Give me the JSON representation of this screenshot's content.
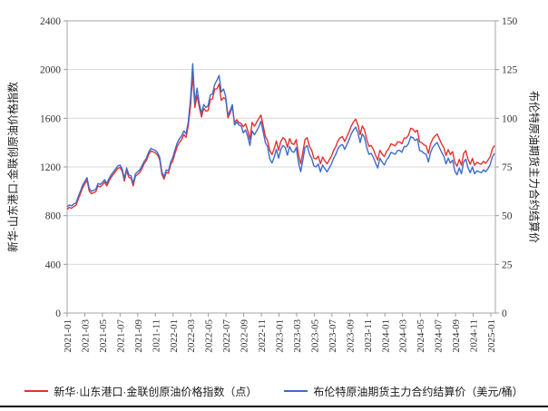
{
  "chart_data": {
    "type": "line",
    "title": "",
    "grid": "horizontal",
    "legend_position": "bottom",
    "x_sampling": "weekly samples, 2021-01 through late 2025-01",
    "x_tick_labels": [
      "2021-01",
      "2021-03",
      "2021-05",
      "2021-07",
      "2021-09",
      "2021-11",
      "2022-01",
      "2022-03",
      "2022-05",
      "2022-07",
      "2022-09",
      "2022-11",
      "2023-01",
      "2023-03",
      "2023-05",
      "2023-07",
      "2023-09",
      "2023-11",
      "2024-01",
      "2024-03",
      "2024-05",
      "2024-07",
      "2024-09",
      "2024-11",
      "2025-01"
    ],
    "left_axis": {
      "label": "新华·山东港口·金联创原油价格指数",
      "min": 0,
      "max": 2400,
      "ticks": [
        0,
        400,
        800,
        1200,
        1600,
        2000,
        2400
      ]
    },
    "right_axis": {
      "label": "布伦特原油期货主力合约结算价",
      "min": 0,
      "max": 150,
      "ticks": [
        0,
        25,
        50,
        75,
        100,
        125,
        150
      ]
    },
    "colors": {
      "grid": "#d9d9d9",
      "border": "#b3b3b3",
      "tick": "#9a9a9a",
      "text": "#333333"
    },
    "series": [
      {
        "name": "新华·山东港口·金联创原油价格指数（点）",
        "axis": "left",
        "color": "#e53030",
        "values": [
          852,
          868,
          860,
          876,
          884,
          932,
          980,
          1028,
          1060,
          1092,
          1004,
          980,
          988,
          996,
          1044,
          1036,
          1052,
          1076,
          1044,
          1084,
          1116,
          1140,
          1164,
          1188,
          1196,
          1164,
          1084,
          1172,
          1116,
          1108,
          1044,
          1124,
          1140,
          1156,
          1188,
          1228,
          1252,
          1300,
          1332,
          1324,
          1316,
          1300,
          1260,
          1140,
          1100,
          1156,
          1148,
          1220,
          1250,
          1314,
          1370,
          1402,
          1426,
          1466,
          1442,
          1538,
          1700,
          1958,
          1688,
          1788,
          1690,
          1610,
          1682,
          1658,
          1664,
          1752,
          1760,
          1840,
          1842,
          1882,
          1746,
          1770,
          1756,
          1604,
          1644,
          1692,
          1564,
          1588,
          1564,
          1556,
          1530,
          1554,
          1498,
          1426,
          1566,
          1534,
          1566,
          1598,
          1626,
          1538,
          1450,
          1418,
          1334,
          1302,
          1350,
          1414,
          1337,
          1409,
          1441,
          1425,
          1361,
          1433,
          1393,
          1385,
          1425,
          1305,
          1225,
          1321,
          1425,
          1441,
          1369,
          1337,
          1273,
          1265,
          1289,
          1225,
          1281,
          1249,
          1225,
          1257,
          1289,
          1337,
          1369,
          1417,
          1441,
          1449,
          1409,
          1449,
          1489,
          1537,
          1569,
          1593,
          1545,
          1465,
          1537,
          1505,
          1425,
          1369,
          1377,
          1345,
          1297,
          1257,
          1337,
          1305,
          1286,
          1326,
          1350,
          1390,
          1382,
          1374,
          1406,
          1406,
          1390,
          1438,
          1438,
          1462,
          1518,
          1510,
          1486,
          1502,
          1406,
          1398,
          1382,
          1374,
          1310,
          1390,
          1430,
          1454,
          1470,
          1430,
          1390,
          1358,
          1294,
          1342,
          1302,
          1326,
          1238,
          1206,
          1262,
          1214,
          1310,
          1334,
          1262,
          1222,
          1270,
          1214,
          1238,
          1230,
          1222,
          1246,
          1230,
          1254,
          1281,
          1345,
          1377
        ]
      },
      {
        "name": "布伦特原油期货主力合约结算价（美元/桶）",
        "axis": "right",
        "color": "#3e6bcb",
        "values": [
          54.5,
          55.5,
          55,
          56,
          56.5,
          59.5,
          62.5,
          65.5,
          67.5,
          69.5,
          64,
          62.5,
          63,
          63.5,
          66.5,
          66,
          67,
          68.5,
          66.5,
          69,
          71,
          72.5,
          74,
          75.5,
          76,
          74,
          69,
          74.5,
          71,
          70.5,
          66.5,
          71.5,
          72.5,
          73.5,
          75.5,
          78,
          79.5,
          82.5,
          84.5,
          84,
          83.5,
          82.5,
          80,
          72.5,
          70,
          73.5,
          73,
          77.5,
          80,
          84,
          87.5,
          89.5,
          91,
          93.5,
          92,
          98,
          110,
          128,
          108,
          115.5,
          107.5,
          102.5,
          107,
          105.5,
          106.5,
          112,
          112.5,
          117.5,
          119.5,
          122,
          113.5,
          115,
          111,
          101.5,
          104,
          107,
          96.5,
          98,
          96.5,
          96,
          92.5,
          94,
          90.5,
          86,
          93.5,
          91.5,
          93.5,
          95.5,
          98.5,
          93,
          87.5,
          85.5,
          79,
          77,
          80,
          84,
          79.5,
          84,
          86,
          85,
          81,
          85.5,
          83,
          82.5,
          85,
          77.5,
          72.5,
          78.5,
          85,
          86,
          81.5,
          79.5,
          75.5,
          75,
          76.5,
          72.5,
          76,
          74,
          72.5,
          74.5,
          76.5,
          79.5,
          81.5,
          84.5,
          86,
          86.5,
          84,
          86.5,
          89,
          92,
          94,
          95.5,
          92.5,
          87.5,
          92,
          90,
          85,
          81.5,
          82,
          80,
          77,
          74.5,
          79.5,
          77.5,
          76,
          78.5,
          80,
          82.5,
          82,
          81.5,
          83.5,
          83.5,
          82.5,
          85.5,
          85.5,
          87,
          90.5,
          90,
          88.5,
          89.5,
          83.5,
          83,
          82,
          81.5,
          77.5,
          82.5,
          85,
          86.5,
          87.5,
          85,
          82.5,
          80.5,
          76.5,
          79.5,
          77,
          78.5,
          73,
          71,
          74.5,
          71.5,
          77.5,
          79,
          74.5,
          72,
          75,
          71.5,
          73,
          72.5,
          72,
          73.5,
          72.5,
          74,
          76,
          80,
          82
        ]
      }
    ]
  }
}
